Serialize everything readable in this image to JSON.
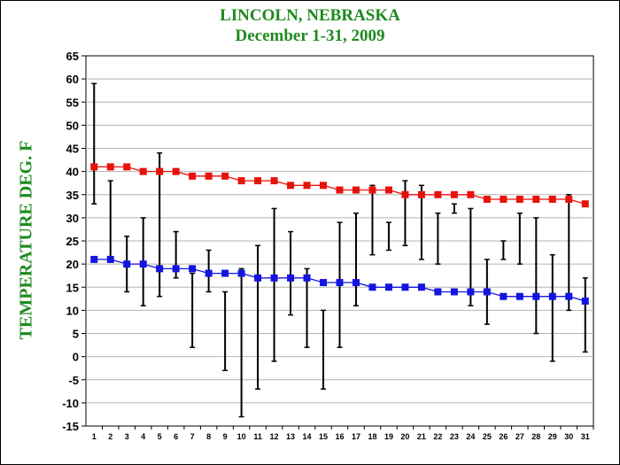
{
  "chart_data": {
    "type": "line",
    "title": "LINCOLN, NEBRASKA",
    "subtitle": "December 1-31, 2009",
    "ylabel": "TEMPERATURE DEG. F",
    "xlabel": "",
    "ylim": [
      -15,
      65
    ],
    "ytick_step": 5,
    "grid": true,
    "x": [
      1,
      2,
      3,
      4,
      5,
      6,
      7,
      8,
      9,
      10,
      11,
      12,
      13,
      14,
      15,
      16,
      17,
      18,
      19,
      20,
      21,
      22,
      23,
      24,
      25,
      26,
      27,
      28,
      29,
      30,
      31
    ],
    "series": [
      {
        "color": "#e8120c",
        "role": "normal-high",
        "values": [
          41,
          41,
          41,
          40,
          40,
          40,
          39,
          39,
          39,
          38,
          38,
          38,
          37,
          37,
          37,
          36,
          36,
          36,
          36,
          35,
          35,
          35,
          35,
          35,
          34,
          34,
          34,
          34,
          34,
          34,
          33
        ]
      },
      {
        "color": "#1414e0",
        "role": "normal-low",
        "values": [
          21,
          21,
          20,
          20,
          19,
          19,
          19,
          18,
          18,
          18,
          17,
          17,
          17,
          17,
          16,
          16,
          16,
          15,
          15,
          15,
          15,
          14,
          14,
          14,
          14,
          13,
          13,
          13,
          13,
          13,
          12
        ]
      }
    ],
    "ranges": {
      "color": "#000000",
      "role": "observed-low-high",
      "high": [
        59,
        38,
        26,
        30,
        44,
        27,
        18,
        23,
        14,
        19,
        24,
        32,
        27,
        19,
        10,
        29,
        31,
        37,
        29,
        38,
        37,
        31,
        33,
        32,
        21,
        25,
        31,
        30,
        22,
        35,
        17
      ],
      "low": [
        33,
        21,
        14,
        11,
        13,
        17,
        2,
        14,
        -3,
        -13,
        -7,
        -1,
        9,
        2,
        -7,
        2,
        11,
        22,
        23,
        24,
        21,
        20,
        31,
        11,
        7,
        21,
        20,
        5,
        -1,
        10,
        1
      ]
    }
  }
}
